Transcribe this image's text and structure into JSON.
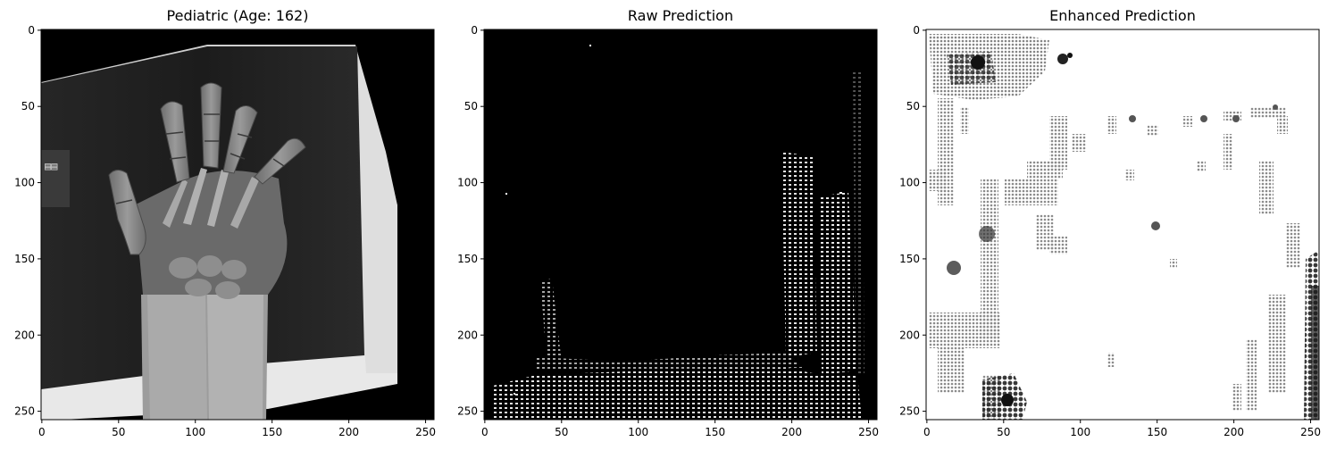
{
  "panels": [
    {
      "id": "original",
      "title": "Pediatric (Age: 162)",
      "xticks": [
        "0",
        "50",
        "100",
        "150",
        "200",
        "250"
      ],
      "yticks": [
        "0",
        "50",
        "100",
        "150",
        "200",
        "250"
      ],
      "image": "hand-xray",
      "background": "#000000"
    },
    {
      "id": "raw",
      "title": "Raw Prediction",
      "xticks": [
        "0",
        "50",
        "100",
        "150",
        "200",
        "250"
      ],
      "yticks": [
        "0",
        "50",
        "100",
        "150",
        "200",
        "250"
      ],
      "image": "dotted-mask-on-black",
      "background": "#000000"
    },
    {
      "id": "enhanced",
      "title": "Enhanced Prediction",
      "xticks": [
        "0",
        "50",
        "100",
        "150",
        "200",
        "250"
      ],
      "yticks": [
        "0",
        "50",
        "100",
        "150",
        "200",
        "250"
      ],
      "image": "sparse-dark-speckles-on-white",
      "background": "#ffffff"
    }
  ]
}
